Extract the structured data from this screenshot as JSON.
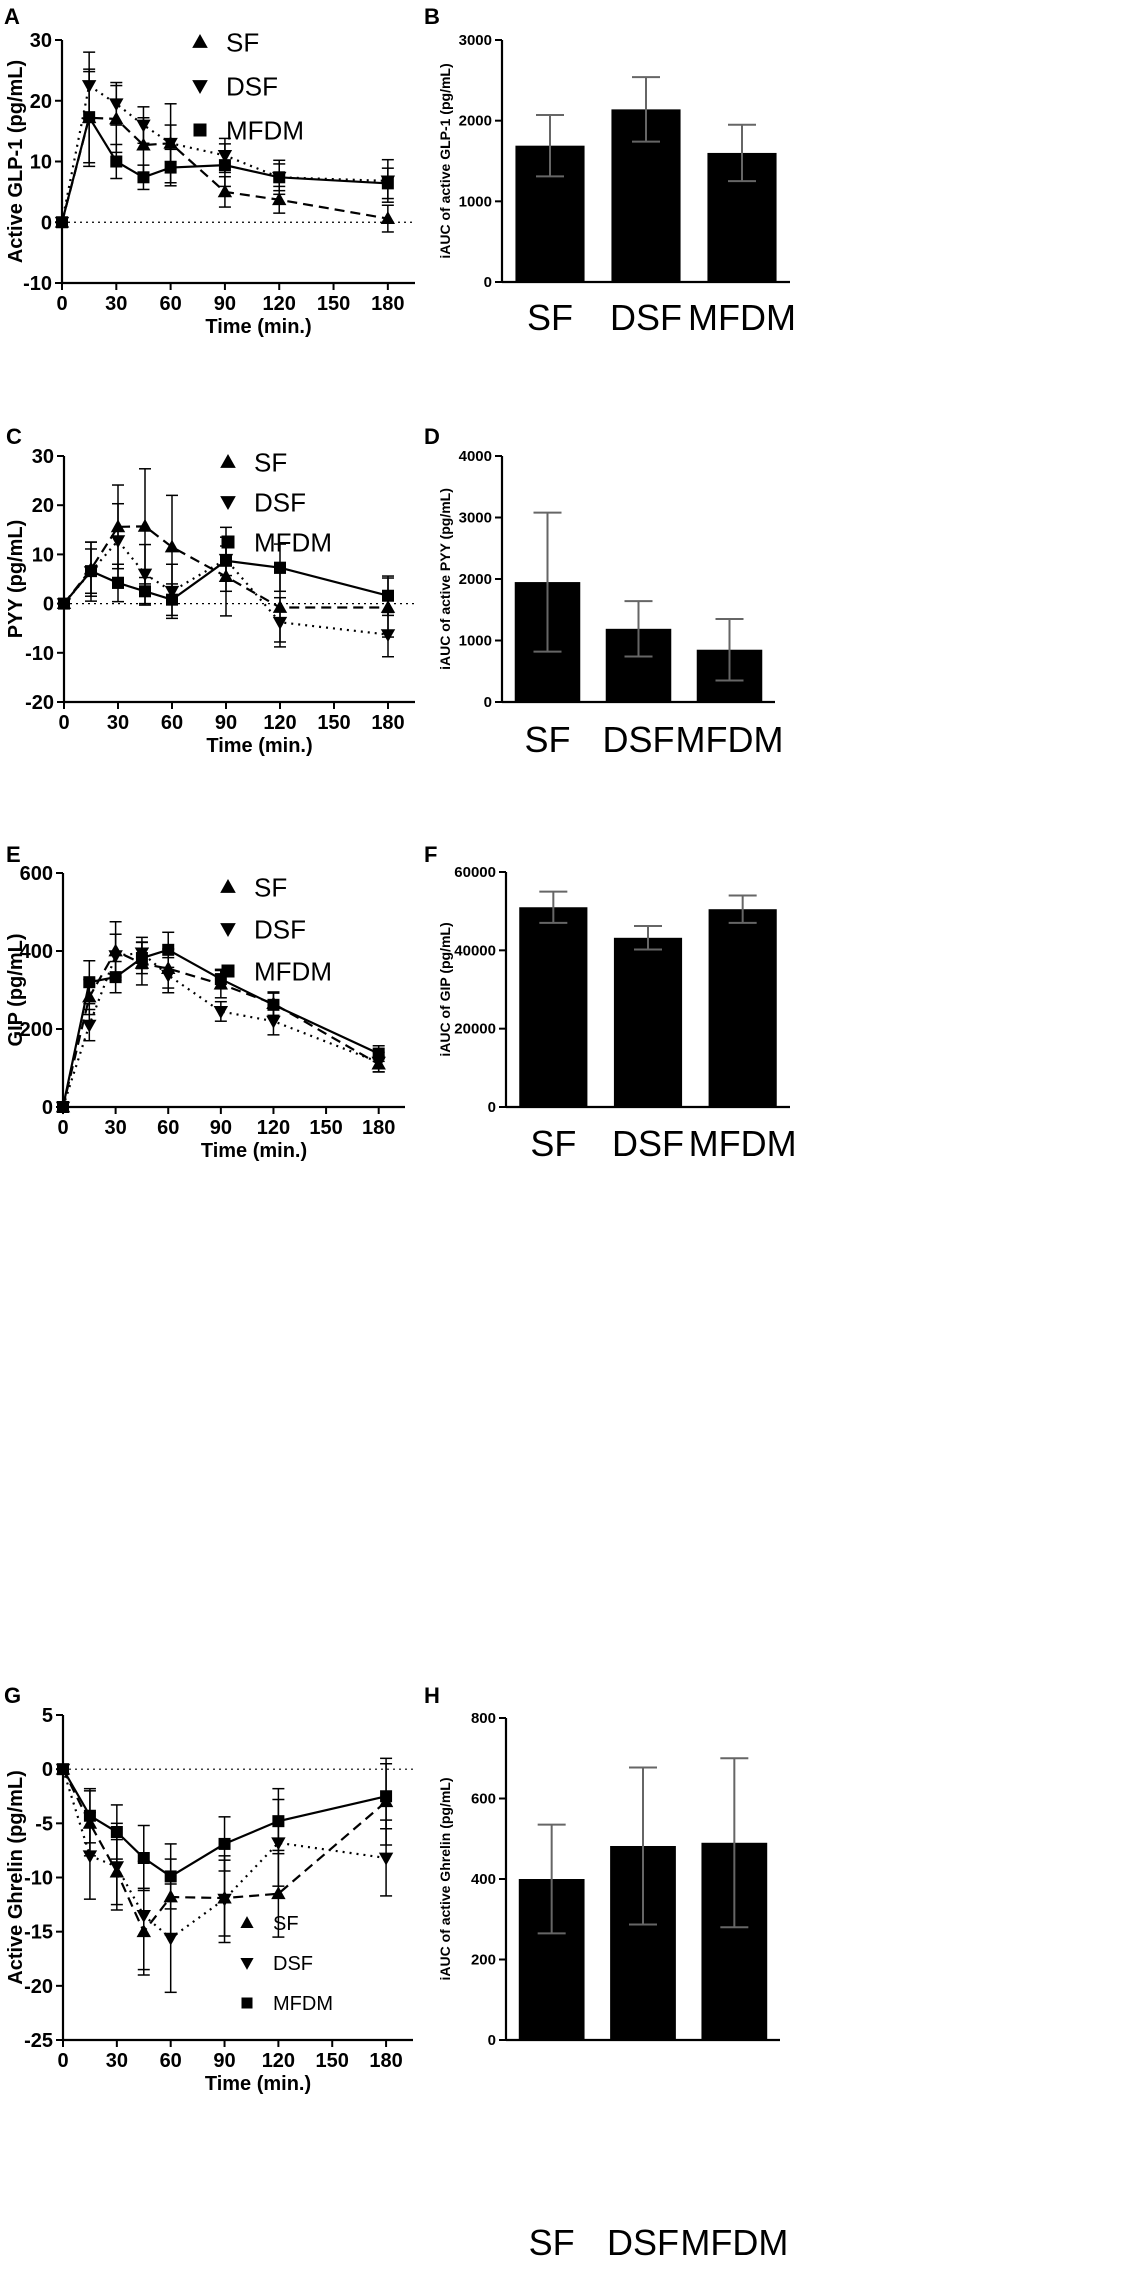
{
  "chart_data": [
    {
      "panel": "A",
      "type": "line",
      "xlabel": "Time (min.)",
      "ylabel": "Active GLP-1 (pg/mL)",
      "xlim": [
        0,
        195
      ],
      "ylim": [
        -10,
        30
      ],
      "xticks": [
        "0",
        "30",
        "60",
        "90",
        "120",
        "150",
        "180"
      ],
      "yticks": [
        "-10",
        "0",
        "10",
        "20",
        "30"
      ],
      "legend_position": "top-center",
      "x": [
        0,
        15,
        30,
        45,
        60,
        90,
        120,
        180
      ],
      "series": [
        {
          "name": "SF",
          "marker": "triangle-up",
          "dash": "dashed",
          "values": [
            0,
            17.2,
            17,
            12.7,
            13,
            5,
            3.7,
            0.6
          ],
          "errors": [
            0,
            8,
            5.5,
            4.5,
            6.5,
            2.5,
            2.2,
            2.2
          ]
        },
        {
          "name": "DSF",
          "marker": "triangle-down",
          "dash": "dotted",
          "values": [
            0,
            22.5,
            19.5,
            16,
            13,
            11,
            7.4,
            6.8
          ],
          "errors": [
            0,
            5.5,
            3.5,
            3,
            3,
            2.8,
            2.8,
            3.5
          ]
        },
        {
          "name": "MFDM",
          "marker": "square",
          "dash": "solid",
          "values": [
            0,
            17.3,
            10,
            7.4,
            9,
            9.4,
            7.4,
            6.4
          ],
          "errors": [
            0,
            7.5,
            2.8,
            2,
            3,
            3.5,
            2.2,
            2.5
          ]
        }
      ]
    },
    {
      "panel": "B",
      "type": "bar",
      "ylabel": "iAUC of active GLP-1 (pg/mL)",
      "ylim": [
        0,
        3000
      ],
      "yticks": [
        "0",
        "1000",
        "2000",
        "3000"
      ],
      "categories": [
        "SF",
        "DSF",
        "MFDM"
      ],
      "values": [
        1690,
        2140,
        1600
      ],
      "errors": [
        380,
        400,
        350
      ]
    },
    {
      "panel": "C",
      "type": "line",
      "xlabel": "Time (min.)",
      "ylabel": "PYY  (pg/mL)",
      "xlim": [
        0,
        195
      ],
      "ylim": [
        -20,
        30
      ],
      "xticks": [
        "0",
        "30",
        "60",
        "90",
        "120",
        "150",
        "180"
      ],
      "yticks": [
        "-20",
        "-10",
        "0",
        "10",
        "20",
        "30"
      ],
      "legend_position": "top-center",
      "x": [
        0,
        15,
        30,
        45,
        60,
        90,
        120,
        180
      ],
      "series": [
        {
          "name": "SF",
          "marker": "triangle-up",
          "dash": "dashed",
          "values": [
            0,
            7,
            15.6,
            15.7,
            11.5,
            5.5,
            -0.8,
            -0.8
          ],
          "errors": [
            0,
            5.5,
            8.5,
            11.7,
            10.5,
            8,
            7,
            6
          ]
        },
        {
          "name": "DSF",
          "marker": "triangle-down",
          "dash": "dotted",
          "values": [
            0,
            6.5,
            12.8,
            6,
            2.5,
            9,
            -3.8,
            -6.3
          ],
          "errors": [
            0,
            6,
            7.5,
            6,
            5.5,
            6.5,
            5,
            4.5
          ]
        },
        {
          "name": "MFDM",
          "marker": "square",
          "dash": "solid",
          "values": [
            0,
            6.6,
            4.2,
            2.5,
            0.8,
            8.7,
            7.3,
            1.6
          ],
          "errors": [
            0,
            4.5,
            3.8,
            2.8,
            3.2,
            3,
            4.8,
            4
          ]
        }
      ]
    },
    {
      "panel": "D",
      "type": "bar",
      "ylabel": "iAUC of active PYY (pg/mL)",
      "ylim": [
        0,
        4000
      ],
      "yticks": [
        "0",
        "1000",
        "2000",
        "3000",
        "4000"
      ],
      "categories": [
        "SF",
        "DSF",
        "MFDM"
      ],
      "values": [
        1950,
        1190,
        850
      ],
      "errors": [
        1130,
        450,
        500
      ]
    },
    {
      "panel": "E",
      "type": "line",
      "xlabel": "Time (min.)",
      "ylabel": "GIP (pg/mL)",
      "xlim": [
        0,
        195
      ],
      "ylim": [
        0,
        600
      ],
      "xticks": [
        "0",
        "30",
        "60",
        "90",
        "120",
        "150",
        "180"
      ],
      "yticks": [
        "0",
        "200",
        "400",
        "600"
      ],
      "legend_position": "top-center",
      "x": [
        0,
        15,
        30,
        45,
        60,
        90,
        120,
        180
      ],
      "series": [
        {
          "name": "SF",
          "marker": "triangle-up",
          "dash": "dashed",
          "values": [
            0,
            282,
            400,
            368,
            355,
            315,
            265,
            110
          ],
          "errors": [
            0,
            45,
            75,
            55,
            50,
            35,
            30,
            20
          ]
        },
        {
          "name": "DSF",
          "marker": "triangle-down",
          "dash": "dotted",
          "values": [
            0,
            210,
            388,
            395,
            338,
            245,
            220,
            115
          ],
          "errors": [
            0,
            40,
            55,
            40,
            45,
            25,
            35,
            25
          ]
        },
        {
          "name": "MFDM",
          "marker": "square",
          "dash": "solid",
          "values": [
            0,
            320,
            333,
            382,
            403,
            328,
            262,
            137
          ],
          "errors": [
            0,
            55,
            40,
            40,
            45,
            25,
            30,
            20
          ]
        }
      ]
    },
    {
      "panel": "F",
      "type": "bar",
      "ylabel": "iAUC of GIP (pg/mL)",
      "ylim": [
        0,
        60000
      ],
      "yticks": [
        "0",
        "20000",
        "40000",
        "60000"
      ],
      "categories": [
        "SF",
        "DSF",
        "MFDM"
      ],
      "values": [
        51000,
        43200,
        50500
      ],
      "errors": [
        4000,
        3000,
        3500
      ]
    },
    {
      "panel": "G",
      "type": "line",
      "xlabel": "Time (min.)",
      "ylabel": "Active Ghrelin (pg/mL)",
      "xlim": [
        0,
        195
      ],
      "ylim": [
        -25,
        5
      ],
      "xticks": [
        "0",
        "30",
        "60",
        "90",
        "120",
        "150",
        "180"
      ],
      "yticks": [
        "-25",
        "-20",
        "-15",
        "-10",
        "-5",
        "0",
        "5"
      ],
      "legend_position": "bottom-center",
      "x": [
        0,
        15,
        30,
        45,
        60,
        90,
        120,
        180
      ],
      "series": [
        {
          "name": "SF",
          "marker": "triangle-up",
          "dash": "dashed",
          "values": [
            0,
            -5,
            -9.5,
            -15,
            -11.8,
            -11.9,
            -11.5,
            -3
          ],
          "errors": [
            0,
            3,
            3,
            4,
            3.5,
            3.5,
            4,
            4
          ]
        },
        {
          "name": "DSF",
          "marker": "triangle-down",
          "dash": "dotted",
          "values": [
            0,
            -8,
            -9,
            -13.5,
            -15.6,
            -12,
            -6.8,
            -8.2
          ],
          "errors": [
            0,
            4,
            4,
            5,
            5,
            4,
            4,
            3.5
          ]
        },
        {
          "name": "MFDM",
          "marker": "square",
          "dash": "solid",
          "values": [
            0,
            -4.3,
            -5.8,
            -8.2,
            -9.9,
            -6.9,
            -4.8,
            -2.5
          ],
          "errors": [
            0,
            2.5,
            2.5,
            3,
            3,
            2.5,
            3,
            3
          ]
        }
      ]
    },
    {
      "panel": "H",
      "type": "bar",
      "ylabel": "iAUC of active Ghrelin (pg/mL)",
      "ylim": [
        0,
        800
      ],
      "yticks": [
        "0",
        "200",
        "400",
        "600",
        "800"
      ],
      "categories": [
        "SF",
        "DSF",
        "MFDM"
      ],
      "values": [
        400,
        482,
        490
      ],
      "errors": [
        135,
        195,
        210
      ]
    }
  ]
}
